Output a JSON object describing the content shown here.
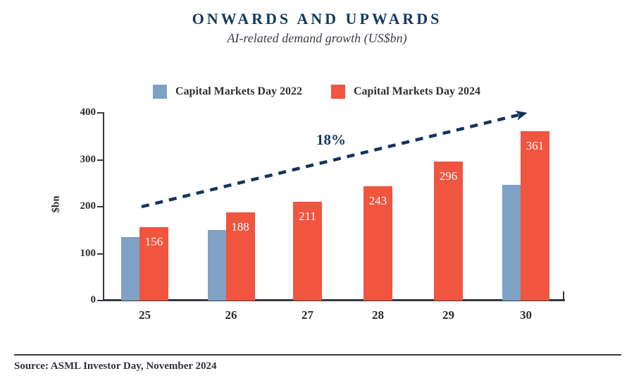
{
  "header": {
    "title": "ONWARDS AND UPWARDS",
    "subtitle": "AI-related demand growth (US$bn)"
  },
  "legend": {
    "items": [
      {
        "label": "Capital Markets Day 2022",
        "color": "#7fa2c4"
      },
      {
        "label": "Capital Markets Day 2024",
        "color": "#f0553f"
      }
    ]
  },
  "annotation": {
    "label": "18%"
  },
  "axes": {
    "y_label": "$bn",
    "y_ticks": [
      400,
      300,
      200,
      100,
      0
    ],
    "x_ticks": [
      "25",
      "26",
      "27",
      "28",
      "29",
      "30"
    ]
  },
  "chart_data": {
    "type": "bar",
    "title": "ONWARDS AND UPWARDS",
    "subtitle": "AI-related demand growth (US$bn)",
    "xlabel": "",
    "ylabel": "$bn",
    "ylim": [
      0,
      400
    ],
    "grid": false,
    "legend_position": "top",
    "categories": [
      "25",
      "26",
      "27",
      "28",
      "29",
      "30"
    ],
    "series": [
      {
        "name": "Capital Markets Day 2022",
        "color": "#7fa2c4",
        "values": [
          135,
          150,
          null,
          null,
          null,
          247
        ],
        "value_labels_shown": false
      },
      {
        "name": "Capital Markets Day 2024",
        "color": "#f0553f",
        "values": [
          156,
          188,
          211,
          243,
          296,
          361
        ],
        "value_labels_shown": true
      }
    ],
    "annotations": [
      {
        "text": "18%",
        "type": "dashed-arrow",
        "from_category": "25",
        "to_category": "30"
      }
    ]
  },
  "footer": {
    "source": "Source: ASML Investor Day, November 2024"
  },
  "colors": {
    "navy": "#14395e",
    "blue_bar": "#7fa2c4",
    "red_bar": "#f0553f",
    "axis": "#36393e",
    "text": "#2d2d2d"
  }
}
